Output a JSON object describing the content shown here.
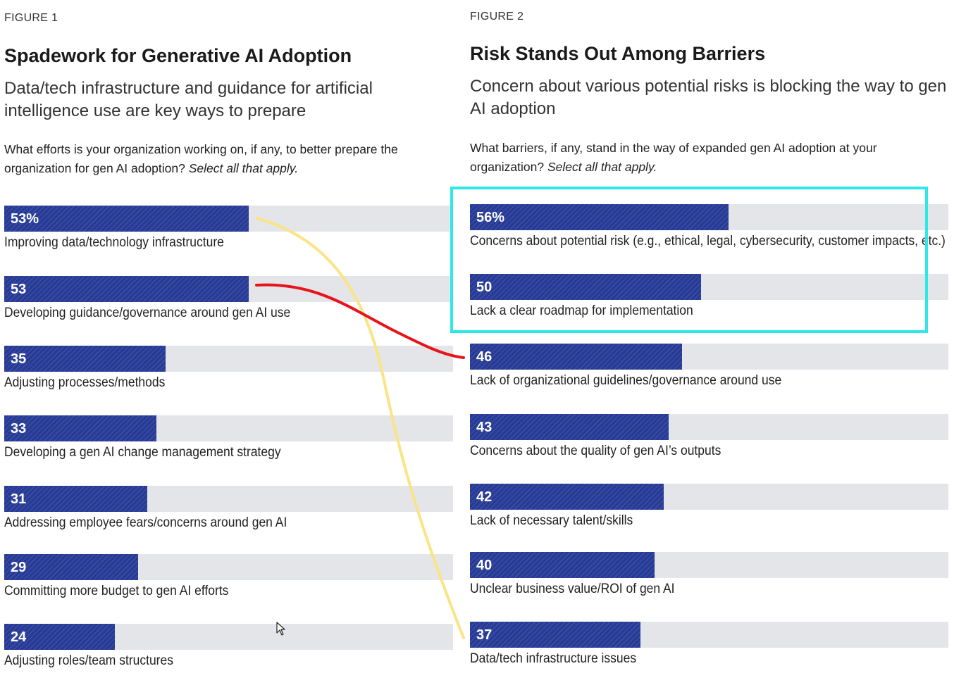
{
  "chart_data": [
    {
      "type": "bar",
      "figure_label": "FIGURE 1",
      "title": "Spadework for Generative AI Adoption",
      "subtitle": "Data/tech infrastructure and guidance for artificial intelligence use are key ways to prepare",
      "question": "What efforts is your organization working on, if any, to better prepare the organization for gen AI adoption?",
      "question_note": "Select all that apply.",
      "xlim": [
        0,
        100
      ],
      "value_suffix_first": "%",
      "categories": [
        "Improving data/technology infrastructure",
        "Developing guidance/governance around gen AI use",
        "Adjusting processes/methods",
        "Developing a gen AI change management strategy",
        "Addressing employee fears/concerns around gen AI",
        "Committing more budget to gen AI efforts",
        "Adjusting roles/team structures"
      ],
      "values": [
        53,
        53,
        35,
        33,
        31,
        29,
        24
      ],
      "value_labels": [
        "53%",
        "53",
        "35",
        "33",
        "31",
        "29",
        "24"
      ]
    },
    {
      "type": "bar",
      "figure_label": "FIGURE 2",
      "title": "Risk Stands Out Among Barriers",
      "subtitle": "Concern about various potential risks is blocking the way to gen AI adoption",
      "question": "What barriers, if any, stand in the way of expanded gen AI adoption at your organization?",
      "question_note": "Select all that apply.",
      "xlim": [
        0,
        100
      ],
      "categories": [
        "Concerns about potential risk (e.g., ethical, legal, cybersecurity, customer impacts, etc.)",
        "Lack a clear roadmap for implementation",
        "Lack of organizational guidelines/governance around use",
        "Concerns about the quality of gen AI’s outputs",
        "Lack of necessary talent/skills",
        "Unclear business value/ROI of gen AI",
        "Data/tech infrastructure issues"
      ],
      "values": [
        56,
        50,
        46,
        43,
        42,
        40,
        37
      ],
      "value_labels": [
        "56%",
        "50",
        "46",
        "43",
        "42",
        "40",
        "37"
      ]
    }
  ],
  "colors": {
    "bar_fill": "#263a96",
    "bar_track": "#e3e5e9",
    "highlight_box": "#2ee8e8",
    "connector_red": "#e8141b",
    "connector_yellow": "#fbe486"
  },
  "annotations": {
    "highlight": "box around the top two barriers of Figure 2",
    "connector_red": "links Figure 1 row 2 to Figure 2 row 3",
    "connector_yellow": "links Figure 1 row 1 to Figure 2 row 7",
    "cursor_icon": "mouse-pointer-icon"
  }
}
